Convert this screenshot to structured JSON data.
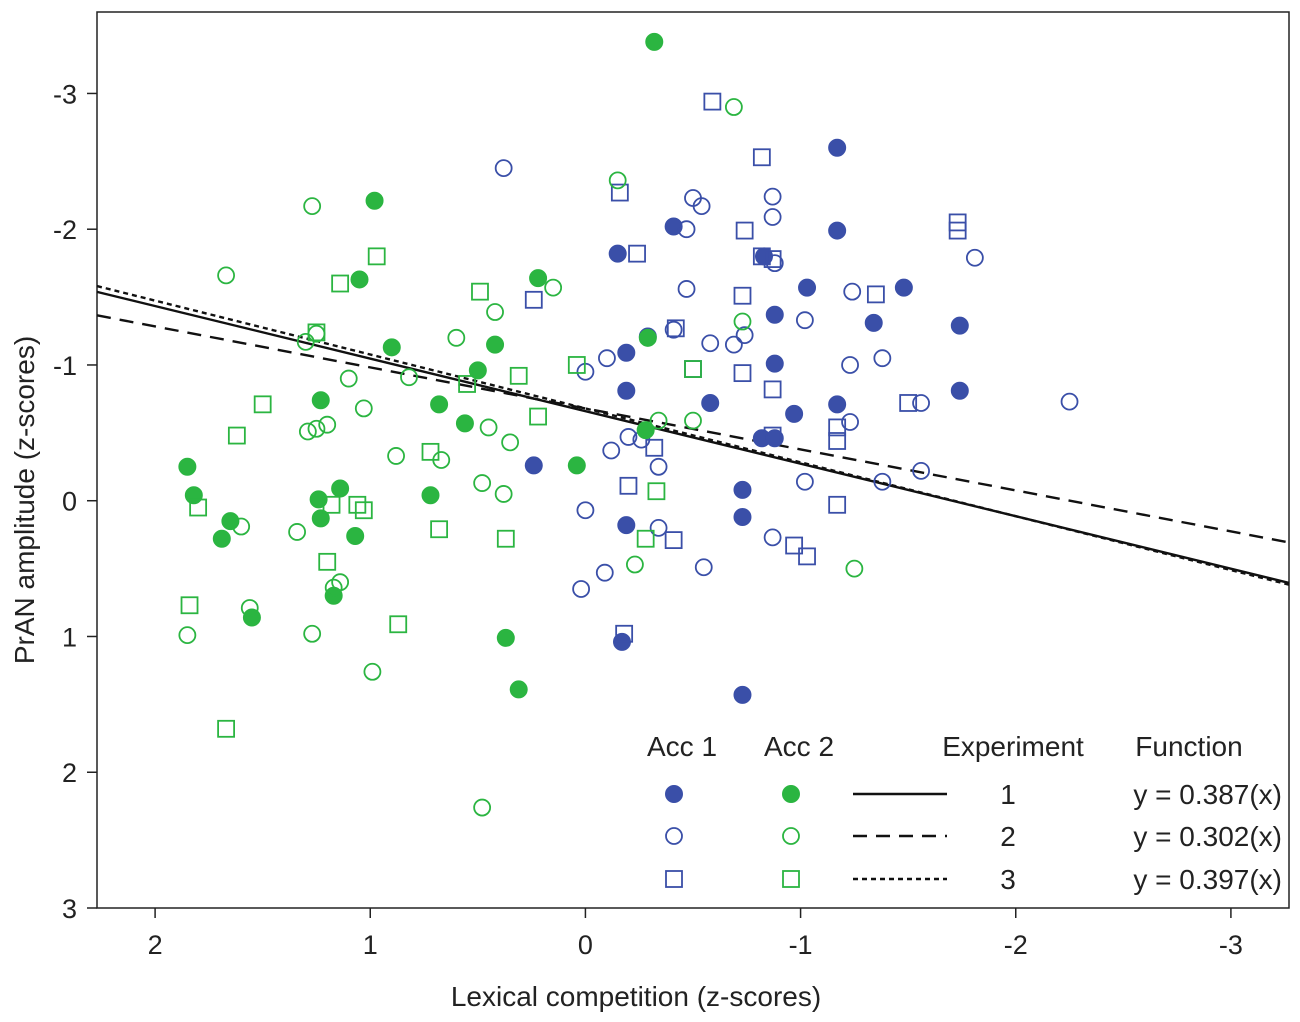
{
  "chart_data": {
    "type": "scatter",
    "xlabel": "Lexical competition (z-scores)",
    "ylabel": "PrAN amplitude (z-scores)",
    "x_reversed": true,
    "y_reversed": true,
    "xlim": [
      2.27,
      -3.27
    ],
    "ylim": [
      -3.6,
      3.0
    ],
    "xticks": [
      2,
      1,
      0,
      -1,
      -2,
      -3
    ],
    "yticks": [
      -3,
      -2,
      -1,
      0,
      1,
      2,
      3
    ],
    "xtick_labels": [
      "2",
      "1",
      "0",
      "-1",
      "-2",
      "-3"
    ],
    "ytick_labels": [
      "-3",
      "-2",
      "-1",
      "0",
      "1",
      "2",
      "3"
    ],
    "colors": {
      "acc1": "#3a4fa8",
      "acc2": "#2bb541",
      "line": "#111111"
    },
    "legend": {
      "position": "bottom-right",
      "acc1_header": "Acc 1",
      "acc2_header": "Acc 2",
      "experiment_header": "Experiment",
      "function_header": "Function",
      "rows": [
        {
          "experiment": "1",
          "function": "y = 0.387(x)",
          "marker": "filled-circle",
          "dash": "solid"
        },
        {
          "experiment": "2",
          "function": "y = 0.302(x)",
          "marker": "open-circle",
          "dash": "dashed"
        },
        {
          "experiment": "3",
          "function": "y = 0.397(x)",
          "marker": "open-square",
          "dash": "dotted"
        }
      ]
    },
    "fit_lines": [
      {
        "experiment": "1",
        "slope": 0.387,
        "intercept": -0.66,
        "dash": "solid"
      },
      {
        "experiment": "2",
        "slope": 0.302,
        "intercept": -0.68,
        "dash": "dashed"
      },
      {
        "experiment": "3",
        "slope": 0.397,
        "intercept": -0.68,
        "dash": "dotted"
      }
    ],
    "series": [
      {
        "acc": "1",
        "experiment": "1",
        "marker": "filled-circle",
        "color": "#3a4fa8",
        "points": [
          [
            -1.17,
            -2.6
          ],
          [
            -0.41,
            -2.02
          ],
          [
            -1.17,
            -1.99
          ],
          [
            -0.83,
            -1.8
          ],
          [
            -0.15,
            -1.82
          ],
          [
            -1.03,
            -1.57
          ],
          [
            -1.48,
            -1.57
          ],
          [
            -0.88,
            -1.37
          ],
          [
            -1.34,
            -1.31
          ],
          [
            -1.74,
            -1.29
          ],
          [
            -0.29,
            -1.21
          ],
          [
            -0.19,
            -1.09
          ],
          [
            -0.88,
            -1.01
          ],
          [
            -0.19,
            -0.81
          ],
          [
            -1.74,
            -0.81
          ],
          [
            -0.58,
            -0.72
          ],
          [
            -1.17,
            -0.71
          ],
          [
            -0.97,
            -0.64
          ],
          [
            -0.82,
            -0.46
          ],
          [
            -0.88,
            -0.46
          ],
          [
            0.24,
            -0.26
          ],
          [
            -0.73,
            -0.08
          ],
          [
            -0.73,
            0.12
          ],
          [
            -0.19,
            0.18
          ],
          [
            -0.17,
            1.04
          ],
          [
            -0.73,
            1.43
          ]
        ]
      },
      {
        "acc": "1",
        "experiment": "2",
        "marker": "open-circle",
        "color": "#3a4fa8",
        "points": [
          [
            0.38,
            -2.45
          ],
          [
            -0.5,
            -2.23
          ],
          [
            -0.87,
            -2.24
          ],
          [
            -0.54,
            -2.17
          ],
          [
            -0.87,
            -2.09
          ],
          [
            -0.47,
            -2.0
          ],
          [
            -1.81,
            -1.79
          ],
          [
            -0.88,
            -1.75
          ],
          [
            -0.47,
            -1.56
          ],
          [
            -1.24,
            -1.54
          ],
          [
            -1.02,
            -1.33
          ],
          [
            -0.41,
            -1.26
          ],
          [
            -0.74,
            -1.22
          ],
          [
            -0.58,
            -1.16
          ],
          [
            -0.69,
            -1.15
          ],
          [
            -0.1,
            -1.05
          ],
          [
            -1.38,
            -1.05
          ],
          [
            -1.23,
            -1.0
          ],
          [
            0.0,
            -0.95
          ],
          [
            -2.25,
            -0.73
          ],
          [
            -1.56,
            -0.72
          ],
          [
            -1.23,
            -0.58
          ],
          [
            -0.2,
            -0.47
          ],
          [
            -0.26,
            -0.45
          ],
          [
            -0.12,
            -0.37
          ],
          [
            -0.34,
            -0.25
          ],
          [
            -1.56,
            -0.22
          ],
          [
            -1.02,
            -0.14
          ],
          [
            -1.38,
            -0.14
          ],
          [
            0.0,
            0.07
          ],
          [
            -0.34,
            0.2
          ],
          [
            -0.87,
            0.27
          ],
          [
            -0.09,
            0.53
          ],
          [
            -0.55,
            0.49
          ],
          [
            0.02,
            0.65
          ]
        ]
      },
      {
        "acc": "1",
        "experiment": "3",
        "marker": "open-square",
        "color": "#3a4fa8",
        "points": [
          [
            -0.59,
            -2.94
          ],
          [
            -0.82,
            -2.53
          ],
          [
            -0.16,
            -2.27
          ],
          [
            -1.73,
            -2.05
          ],
          [
            -1.73,
            -1.99
          ],
          [
            -0.74,
            -1.99
          ],
          [
            -0.24,
            -1.82
          ],
          [
            -0.82,
            -1.8
          ],
          [
            -0.87,
            -1.78
          ],
          [
            0.24,
            -1.48
          ],
          [
            -0.73,
            -1.51
          ],
          [
            -1.35,
            -1.52
          ],
          [
            -0.42,
            -1.27
          ],
          [
            -0.5,
            -0.97
          ],
          [
            -0.73,
            -0.94
          ],
          [
            -0.87,
            -0.82
          ],
          [
            -1.5,
            -0.72
          ],
          [
            -1.17,
            -0.54
          ],
          [
            -1.17,
            -0.44
          ],
          [
            -0.87,
            -0.48
          ],
          [
            -0.32,
            -0.39
          ],
          [
            -0.2,
            -0.11
          ],
          [
            -1.17,
            0.03
          ],
          [
            -0.41,
            0.29
          ],
          [
            -0.97,
            0.33
          ],
          [
            -1.03,
            0.41
          ],
          [
            -0.18,
            0.98
          ]
        ]
      },
      {
        "acc": "2",
        "experiment": "1",
        "marker": "filled-circle",
        "color": "#2bb541",
        "points": [
          [
            -0.32,
            -3.38
          ],
          [
            0.98,
            -2.21
          ],
          [
            0.22,
            -1.64
          ],
          [
            1.05,
            -1.63
          ],
          [
            0.9,
            -1.13
          ],
          [
            0.42,
            -1.15
          ],
          [
            -0.29,
            -1.2
          ],
          [
            1.23,
            -0.74
          ],
          [
            0.68,
            -0.71
          ],
          [
            0.5,
            -0.96
          ],
          [
            0.56,
            -0.57
          ],
          [
            1.85,
            -0.25
          ],
          [
            0.04,
            -0.26
          ],
          [
            -0.28,
            -0.52
          ],
          [
            1.82,
            -0.04
          ],
          [
            1.24,
            -0.01
          ],
          [
            0.72,
            -0.04
          ],
          [
            1.14,
            -0.09
          ],
          [
            1.23,
            0.13
          ],
          [
            1.65,
            0.15
          ],
          [
            1.69,
            0.28
          ],
          [
            1.07,
            0.26
          ],
          [
            1.55,
            0.86
          ],
          [
            1.17,
            0.7
          ],
          [
            0.37,
            1.01
          ],
          [
            0.31,
            1.39
          ]
        ]
      },
      {
        "acc": "2",
        "experiment": "2",
        "marker": "open-circle",
        "color": "#2bb541",
        "points": [
          [
            -0.69,
            -2.9
          ],
          [
            -0.15,
            -2.36
          ],
          [
            1.27,
            -2.17
          ],
          [
            1.67,
            -1.66
          ],
          [
            0.15,
            -1.57
          ],
          [
            0.42,
            -1.39
          ],
          [
            -0.73,
            -1.32
          ],
          [
            1.25,
            -1.23
          ],
          [
            1.3,
            -1.17
          ],
          [
            0.6,
            -1.2
          ],
          [
            1.1,
            -0.9
          ],
          [
            0.82,
            -0.91
          ],
          [
            1.03,
            -0.68
          ],
          [
            1.2,
            -0.56
          ],
          [
            1.25,
            -0.53
          ],
          [
            1.29,
            -0.51
          ],
          [
            0.45,
            -0.54
          ],
          [
            0.35,
            -0.43
          ],
          [
            -0.34,
            -0.59
          ],
          [
            -0.5,
            -0.59
          ],
          [
            0.88,
            -0.33
          ],
          [
            0.67,
            -0.3
          ],
          [
            0.48,
            -0.13
          ],
          [
            0.38,
            -0.05
          ],
          [
            1.6,
            0.19
          ],
          [
            1.34,
            0.23
          ],
          [
            1.14,
            0.6
          ],
          [
            1.17,
            0.64
          ],
          [
            1.56,
            0.79
          ],
          [
            1.85,
            0.99
          ],
          [
            1.27,
            0.98
          ],
          [
            -0.23,
            0.47
          ],
          [
            -1.25,
            0.5
          ],
          [
            0.99,
            1.26
          ],
          [
            0.48,
            2.26
          ]
        ]
      },
      {
        "acc": "2",
        "experiment": "3",
        "marker": "open-square",
        "color": "#2bb541",
        "points": [
          [
            0.97,
            -1.8
          ],
          [
            1.14,
            -1.6
          ],
          [
            0.49,
            -1.54
          ],
          [
            1.25,
            -1.24
          ],
          [
            0.04,
            -1.0
          ],
          [
            0.31,
            -0.92
          ],
          [
            -0.5,
            -0.97
          ],
          [
            0.55,
            -0.86
          ],
          [
            1.5,
            -0.71
          ],
          [
            0.22,
            -0.62
          ],
          [
            1.62,
            -0.48
          ],
          [
            0.72,
            -0.36
          ],
          [
            -0.33,
            -0.07
          ],
          [
            1.8,
            0.05
          ],
          [
            1.18,
            0.03
          ],
          [
            1.06,
            0.03
          ],
          [
            1.03,
            0.07
          ],
          [
            0.68,
            0.21
          ],
          [
            0.37,
            0.28
          ],
          [
            -0.28,
            0.28
          ],
          [
            1.2,
            0.45
          ],
          [
            1.84,
            0.77
          ],
          [
            0.87,
            0.91
          ],
          [
            1.67,
            1.68
          ]
        ]
      }
    ]
  }
}
